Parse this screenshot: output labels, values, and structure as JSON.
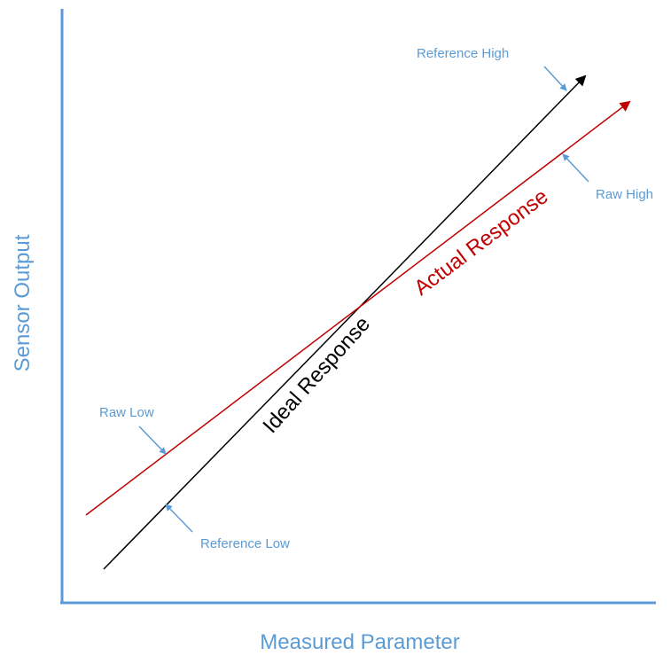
{
  "axes": {
    "x_title": "Measured Parameter",
    "y_title": "Sensor Output"
  },
  "ideal": {
    "label": "Ideal Response",
    "color": "#000000"
  },
  "actual": {
    "label": "Actual Response",
    "color": "#c00000"
  },
  "callouts": {
    "reference_high": "Reference High",
    "raw_high": "Raw High",
    "raw_low": "Raw Low",
    "reference_low": "Reference Low"
  },
  "colors": {
    "axis": "#5b9bd5",
    "callout": "#5b9bd5"
  }
}
